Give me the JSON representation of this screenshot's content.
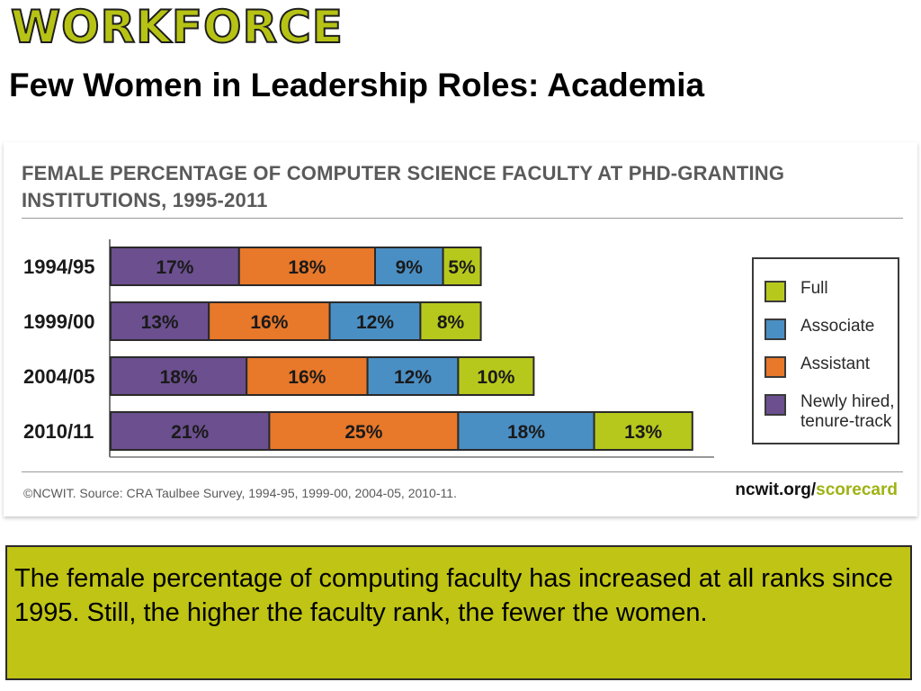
{
  "header": {
    "brand": "WORKFORCE",
    "title": "Few Women in Leadership Roles: Academia"
  },
  "chart_data": {
    "type": "bar",
    "stacked": true,
    "orientation": "horizontal",
    "title": "FEMALE PERCENTAGE OF COMPUTER SCIENCE FACULTY AT PHD-GRANTING INSTITUTIONS, 1995-2011",
    "categories": [
      "1994/95",
      "1999/00",
      "2004/05",
      "2010/11"
    ],
    "series": [
      {
        "name": "Newly hired, tenure-track",
        "color": "#6b4f8f",
        "values": [
          17,
          13,
          18,
          21
        ],
        "labels": [
          "17%",
          "13%",
          "18%",
          "21%"
        ]
      },
      {
        "name": "Assistant",
        "color": "#e8782a",
        "values": [
          18,
          16,
          16,
          25
        ],
        "labels": [
          "18%",
          "16%",
          "16%",
          "25%"
        ]
      },
      {
        "name": "Associate",
        "color": "#4a8fc4",
        "values": [
          9,
          12,
          12,
          18
        ],
        "labels": [
          "9%",
          "12%",
          "12%",
          "18%"
        ]
      },
      {
        "name": "Full",
        "color": "#b7c81c",
        "values": [
          5,
          8,
          10,
          13
        ],
        "labels": [
          "5%",
          "8%",
          "10%",
          "13%"
        ]
      }
    ],
    "legend": {
      "placement": "right",
      "items": [
        {
          "label": "Full",
          "color": "#b7c81c"
        },
        {
          "label": "Associate",
          "color": "#4a8fc4"
        },
        {
          "label": "Assistant",
          "color": "#e8782a"
        },
        {
          "label": "Newly hired, tenure-track",
          "color": "#6b4f8f"
        }
      ]
    },
    "source": "©NCWIT. Source: CRA Taulbee Survey, 1994-95, 1999-00, 2004-05, 2010-11.",
    "brand_prefix": "ncwit.org/",
    "brand_accent": "scorecard"
  },
  "note": {
    "text": "The female percentage of computing faculty has increased at all ranks since 1995. Still, the higher the faculty rank, the fewer the women."
  }
}
